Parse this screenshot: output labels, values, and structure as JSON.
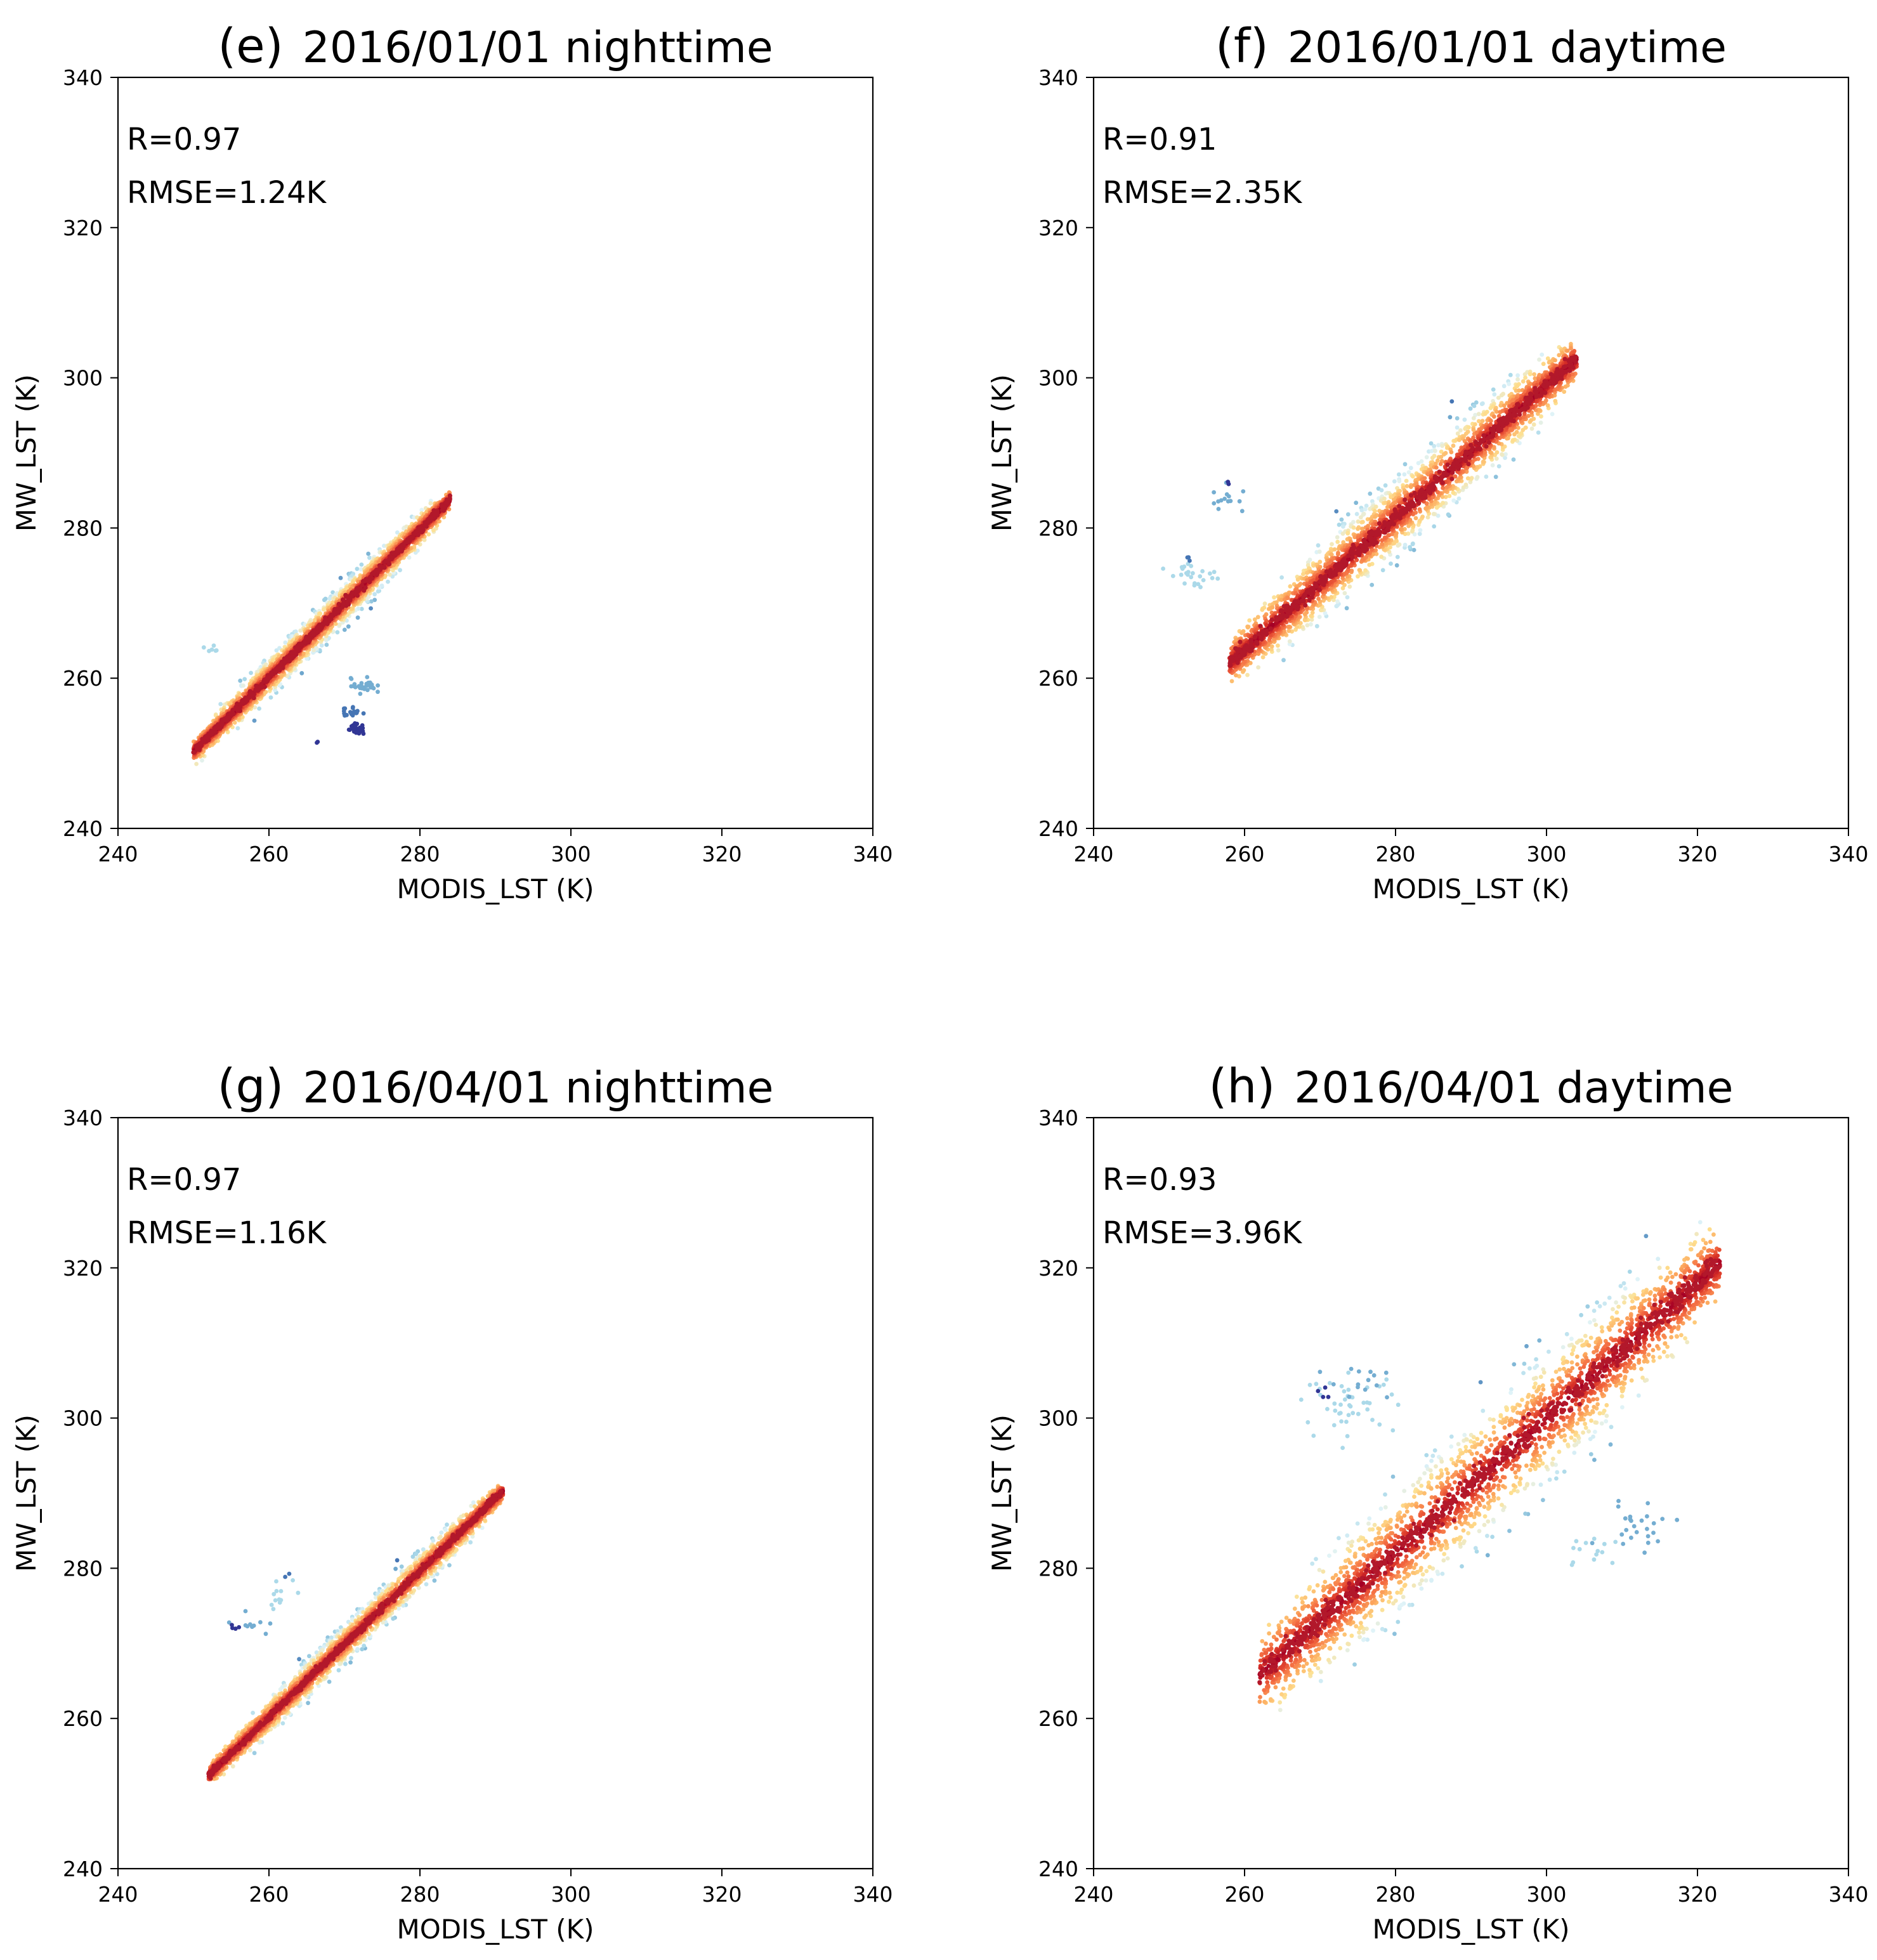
{
  "chart_data": [
    {
      "type": "scatter",
      "panel_letter": "(e)",
      "title": "2016/01/01 nighttime",
      "xlabel": "MODIS_LST (K)",
      "ylabel": "MW_LST (K)",
      "xlim": [
        240,
        340
      ],
      "ylim": [
        240,
        340
      ],
      "xticks": [
        "240",
        "260",
        "280",
        "300",
        "320",
        "340"
      ],
      "yticks": [
        "240",
        "260",
        "280",
        "300",
        "320",
        "340"
      ],
      "stats": {
        "r": "R=0.97",
        "rmse": "RMSE=1.24K"
      },
      "point_cloud": {
        "x_range": [
          250,
          284
        ],
        "slope": 0.985,
        "intercept": 4.0,
        "spread": 1.24
      },
      "outlier_clusters": [
        {
          "x": 252.5,
          "y": 264.0,
          "n": 6,
          "spread": 0.6,
          "color": "#abd9e9"
        },
        {
          "x": 272.5,
          "y": 259.0,
          "n": 28,
          "spread": 0.8,
          "color": "#74add1"
        },
        {
          "x": 271.0,
          "y": 255.5,
          "n": 18,
          "spread": 0.7,
          "color": "#4575b4"
        },
        {
          "x": 271.5,
          "y": 253.2,
          "n": 30,
          "spread": 0.6,
          "color": "#313695"
        },
        {
          "x": 267.0,
          "y": 251.5,
          "n": 2,
          "spread": 0.3,
          "color": "#313695"
        }
      ]
    },
    {
      "type": "scatter",
      "panel_letter": "(f)",
      "title": "2016/01/01 daytime",
      "xlabel": "MODIS_LST (K)",
      "ylabel": "MW_LST (K)",
      "xlim": [
        240,
        340
      ],
      "ylim": [
        240,
        340
      ],
      "xticks": [
        "240",
        "260",
        "280",
        "300",
        "320",
        "340"
      ],
      "yticks": [
        "240",
        "260",
        "280",
        "300",
        "320",
        "340"
      ],
      "stats": {
        "r": "R=0.91",
        "rmse": "RMSE=2.35K"
      },
      "point_cloud": {
        "x_range": [
          258,
          304
        ],
        "slope": 0.88,
        "intercept": 35.0,
        "spread": 2.35
      },
      "outlier_clusters": [
        {
          "x": 253.0,
          "y": 274.0,
          "n": 25,
          "spread": 1.5,
          "color": "#abd9e9"
        },
        {
          "x": 258.0,
          "y": 283.5,
          "n": 14,
          "spread": 1.5,
          "color": "#74add1"
        },
        {
          "x": 252.5,
          "y": 276.0,
          "n": 3,
          "spread": 0.4,
          "color": "#4575b4"
        },
        {
          "x": 257.5,
          "y": 286.0,
          "n": 2,
          "spread": 0.3,
          "color": "#313695"
        }
      ]
    },
    {
      "type": "scatter",
      "panel_letter": "(g)",
      "title": "2016/04/01 nighttime",
      "xlabel": "MODIS_LST (K)",
      "ylabel": "MW_LST (K)",
      "xlim": [
        240,
        340
      ],
      "ylim": [
        240,
        340
      ],
      "xticks": [
        "240",
        "260",
        "280",
        "300",
        "320",
        "340"
      ],
      "yticks": [
        "240",
        "260",
        "280",
        "300",
        "320",
        "340"
      ],
      "stats": {
        "r": "R=0.97",
        "rmse": "RMSE=1.16K"
      },
      "point_cloud": {
        "x_range": [
          252,
          291
        ],
        "slope": 0.97,
        "intercept": 8.0,
        "spread": 1.16
      },
      "outlier_clusters": [
        {
          "x": 257.5,
          "y": 272.5,
          "n": 10,
          "spread": 1.2,
          "color": "#74add1"
        },
        {
          "x": 261.5,
          "y": 277.0,
          "n": 12,
          "spread": 1.5,
          "color": "#abd9e9"
        },
        {
          "x": 255.5,
          "y": 272.0,
          "n": 4,
          "spread": 0.4,
          "color": "#313695"
        },
        {
          "x": 262.5,
          "y": 279.0,
          "n": 2,
          "spread": 0.3,
          "color": "#4575b4"
        }
      ]
    },
    {
      "type": "scatter",
      "panel_letter": "(h)",
      "title": "2016/04/01 daytime",
      "xlabel": "MODIS_LST (K)",
      "ylabel": "MW_LST (K)",
      "xlim": [
        240,
        340
      ],
      "ylim": [
        240,
        340
      ],
      "xticks": [
        "240",
        "260",
        "280",
        "300",
        "320",
        "340"
      ],
      "yticks": [
        "240",
        "260",
        "280",
        "300",
        "320",
        "340"
      ],
      "stats": {
        "r": "R=0.93",
        "rmse": "RMSE=3.96K"
      },
      "point_cloud": {
        "x_range": [
          262,
          323
        ],
        "slope": 0.9,
        "intercept": 30.0,
        "spread": 3.96
      },
      "outlier_clusters": [
        {
          "x": 274.0,
          "y": 302.0,
          "n": 45,
          "spread": 3.0,
          "color": "#abd9e9"
        },
        {
          "x": 276.0,
          "y": 305.0,
          "n": 14,
          "spread": 2.5,
          "color": "#74add1"
        },
        {
          "x": 271.0,
          "y": 303.0,
          "n": 4,
          "spread": 1.0,
          "color": "#313695"
        },
        {
          "x": 312.0,
          "y": 286.0,
          "n": 25,
          "spread": 2.5,
          "color": "#74add1"
        },
        {
          "x": 306.0,
          "y": 282.0,
          "n": 14,
          "spread": 2.5,
          "color": "#abd9e9"
        }
      ]
    }
  ]
}
